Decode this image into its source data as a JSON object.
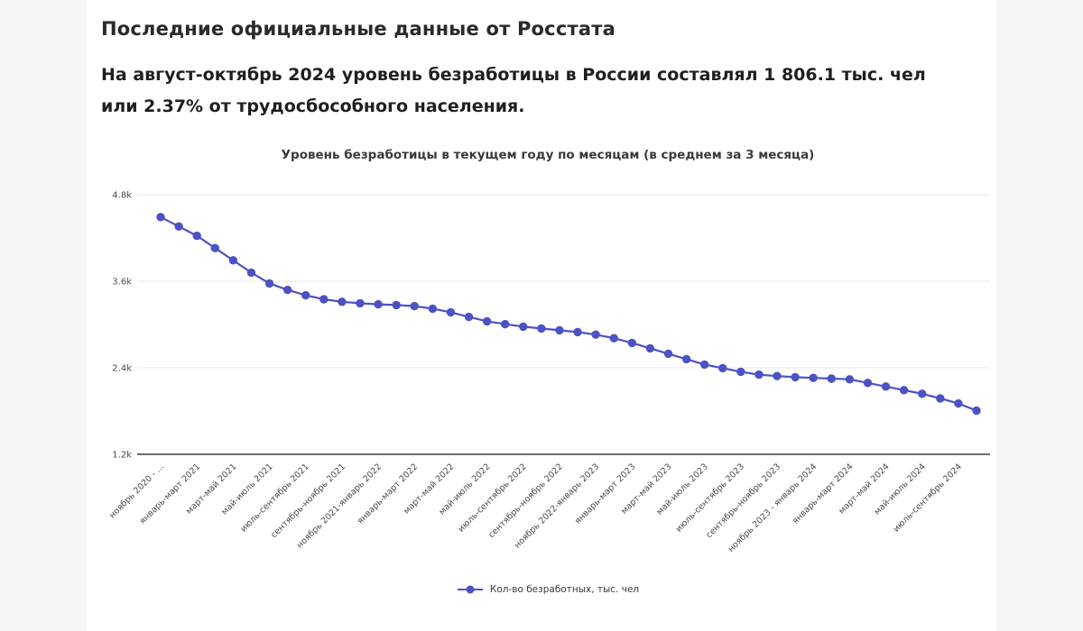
{
  "header": {
    "title": "Последние официальные данные от Росстата",
    "summary": "На август-октябрь 2024 уровень безработицы в России составлял 1 806.1 тыс. чел или 2.37% от трудосбособного населения."
  },
  "chart_data": {
    "type": "line",
    "title": "Уровень безработицы в текущем году по месяцам (в среднем за 3 месяца)",
    "legend": "Кол-во безработных, тыс. чел",
    "line_color": "#4c52c4",
    "grid": true,
    "legend_position": "bottom",
    "ylim": [
      1200,
      4800
    ],
    "yticks": [
      {
        "label": "4.8k",
        "value": 4800
      },
      {
        "label": "3.6k",
        "value": 3600
      },
      {
        "label": "2.4k",
        "value": 2400
      },
      {
        "label": "1.2k",
        "value": 1200
      }
    ],
    "label_every": 2,
    "x_labels": [
      "ноябрь 2020 - ...",
      "январь-март 2021",
      "март-май 2021",
      "май-июль 2021",
      "июль-сентябрь 2021",
      "сентябрь-ноябрь 2021",
      "ноябрь 2021-январь 2022",
      "январь-март 2022",
      "март-май 2022",
      "май-июль 2022",
      "июль-сентябрь 2022",
      "сентябрь-ноябрь 2022",
      "ноябрь 2022-январь 2023",
      "январь-март 2023",
      "март-май 2023",
      "май-июль 2023",
      "июль-сентябрь 2023",
      "сентябрь-ноябрь 2023",
      "ноябрь 2023 - январь 2024",
      "январь-март 2024",
      "март-май 2024",
      "май-июль 2024",
      "июль-сентябрь 2024"
    ],
    "values": [
      4490,
      4360,
      4230,
      4060,
      3890,
      3720,
      3570,
      3480,
      3405,
      3350,
      3315,
      3295,
      3280,
      3270,
      3255,
      3220,
      3170,
      3105,
      3045,
      3005,
      2970,
      2945,
      2920,
      2895,
      2860,
      2810,
      2745,
      2670,
      2595,
      2520,
      2445,
      2395,
      2345,
      2305,
      2285,
      2270,
      2260,
      2250,
      2240,
      2190,
      2140,
      2090,
      2040,
      1975,
      1905,
      1806.1
    ]
  }
}
